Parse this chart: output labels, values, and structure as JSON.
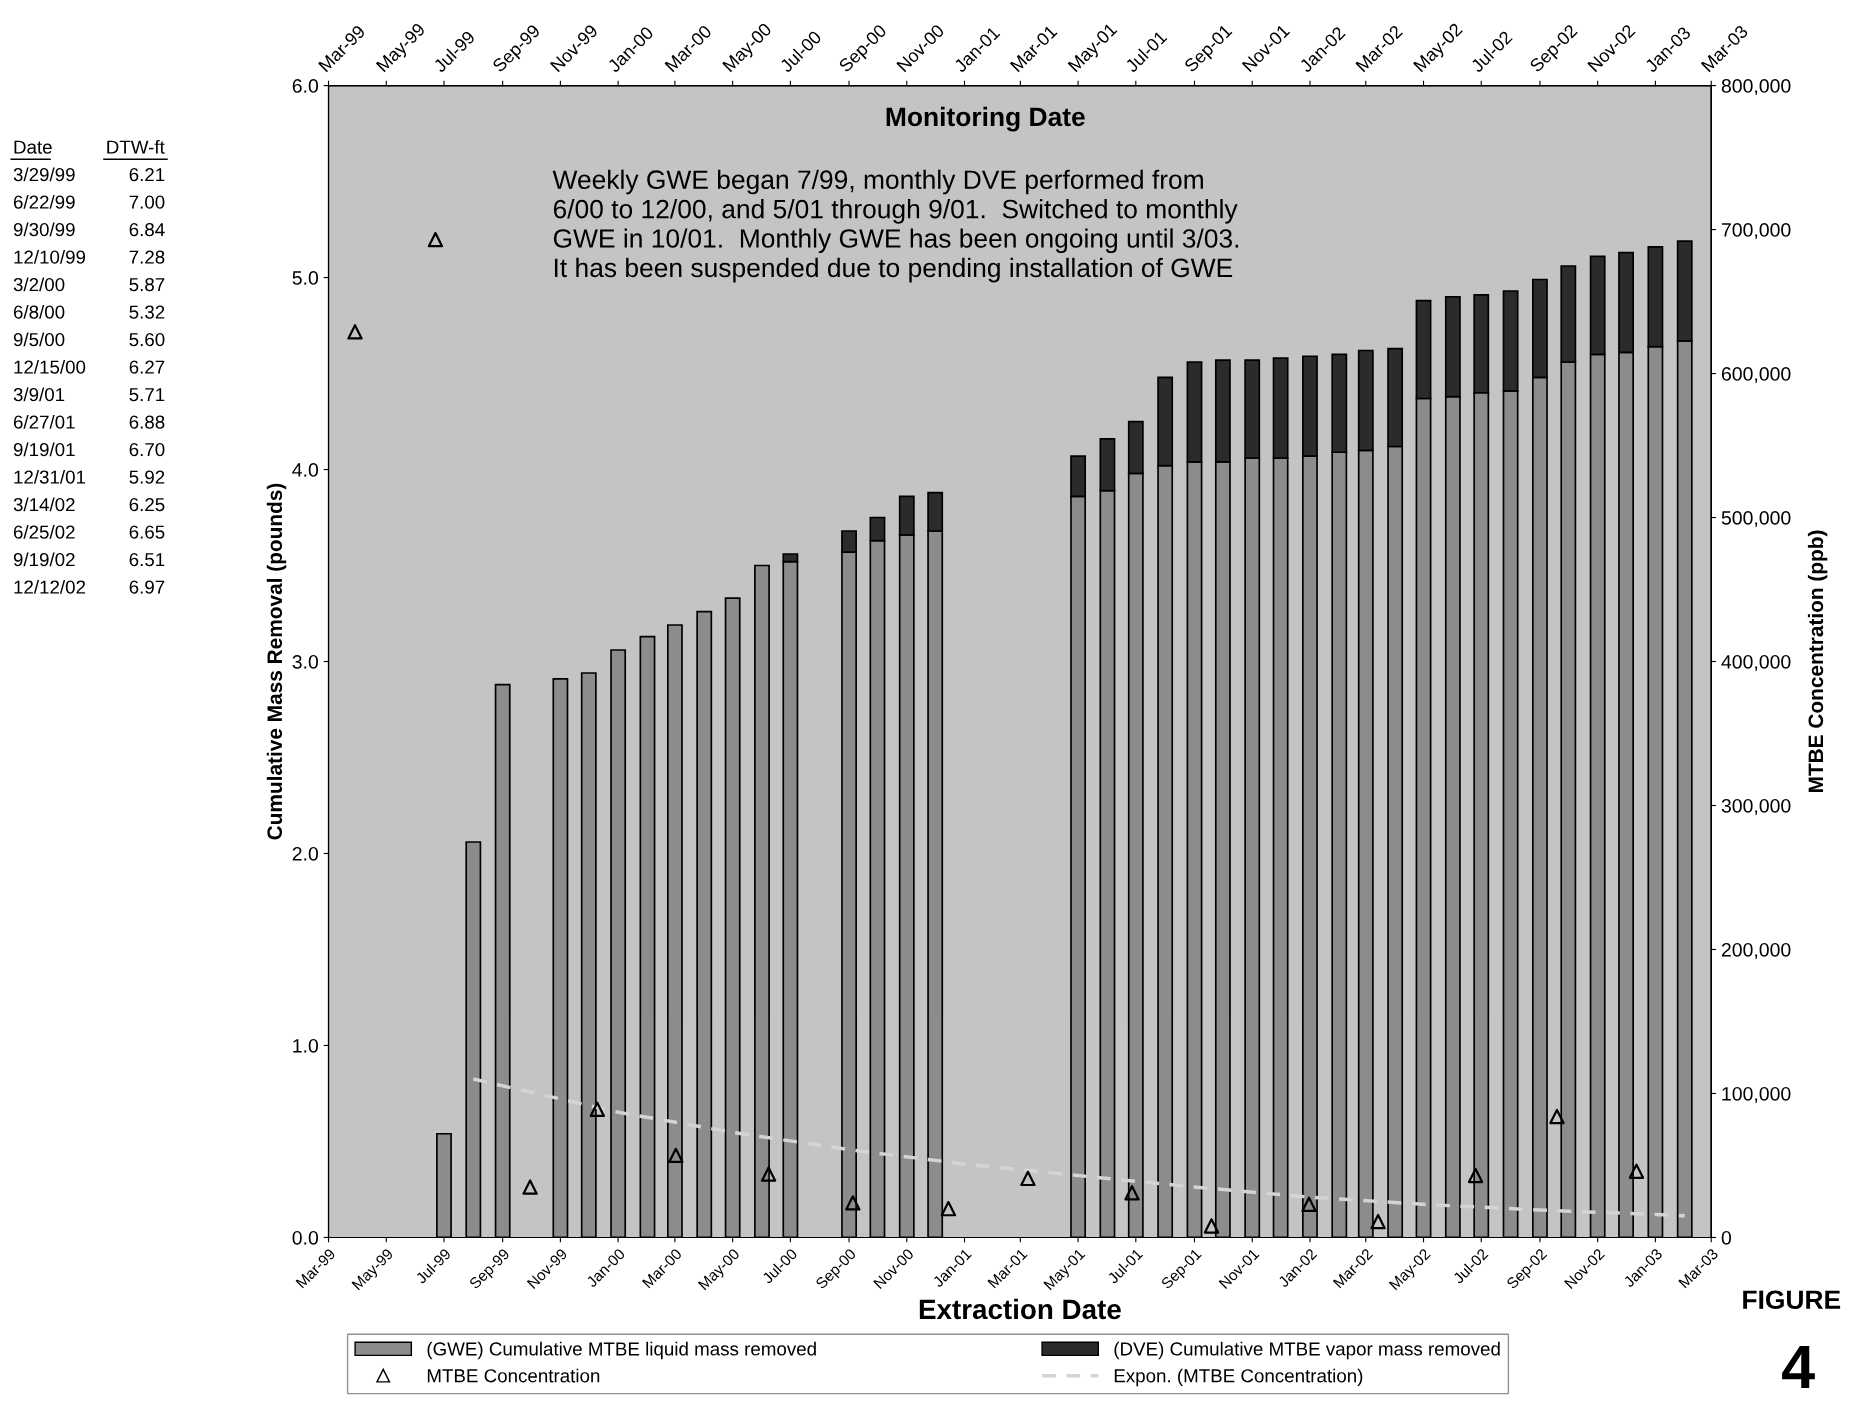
{
  "chart_data": {
    "type": "bar",
    "stacked": true,
    "xlabel": "Extraction Date",
    "ylabel": "Cumulative Mass Removal (pounds)",
    "y2label": "MTBE Concentration (ppb)",
    "x2label": "Monitoring Date",
    "x": [
      "1999-07",
      "1999-08",
      "1999-09",
      "1999-11",
      "1999-12",
      "2000-01",
      "2000-02",
      "2000-03",
      "2000-04",
      "2000-05",
      "2000-06",
      "2000-07",
      "2000-09",
      "2000-10",
      "2000-11",
      "2000-12",
      "2001-05",
      "2001-06",
      "2001-07",
      "2001-08",
      "2001-09",
      "2001-10",
      "2001-11",
      "2001-12",
      "2002-01",
      "2002-02",
      "2002-03",
      "2002-04",
      "2002-05",
      "2002-06",
      "2002-07",
      "2002-08",
      "2002-09",
      "2002-10",
      "2002-11",
      "2002-12",
      "2003-01",
      "2003-02"
    ],
    "series": [
      {
        "name": "(GWE) Cumulative MTBE liquid mass removed",
        "color": "#8c8c8c",
        "values": [
          0.54,
          2.06,
          2.88,
          2.91,
          2.94,
          3.06,
          3.13,
          3.19,
          3.26,
          3.33,
          3.5,
          3.52,
          3.57,
          3.63,
          3.66,
          3.68,
          3.86,
          3.89,
          3.98,
          4.02,
          4.04,
          4.04,
          4.06,
          4.06,
          4.07,
          4.09,
          4.1,
          4.12,
          4.37,
          4.38,
          4.4,
          4.41,
          4.48,
          4.56,
          4.6,
          4.61,
          4.64,
          4.67
        ]
      },
      {
        "name": "(DVE) Cumulative MTBE vapor mass removed",
        "color": "#2b2b2b",
        "values": [
          null,
          null,
          null,
          null,
          null,
          null,
          null,
          null,
          null,
          null,
          null,
          0.04,
          0.11,
          0.12,
          0.2,
          0.2,
          0.21,
          0.27,
          0.27,
          0.46,
          0.52,
          0.53,
          0.51,
          0.52,
          0.52,
          0.51,
          0.52,
          0.51,
          0.51,
          0.52,
          0.51,
          0.52,
          0.51,
          0.5,
          0.51,
          0.52,
          0.52,
          0.52
        ]
      },
      {
        "name": "MTBE Concentration",
        "type": "scatter",
        "axis": "y2",
        "marker": "triangle",
        "color": "#000000",
        "x": [
          "1999-03-29",
          "1999-06-22",
          "1999-09-30",
          "1999-12-10",
          "2000-03-02",
          "2000-06-08",
          "2000-09-05",
          "2000-12-15",
          "2001-03-09",
          "2001-06-27",
          "2001-09-19",
          "2001-12-31",
          "2002-03-14",
          "2002-06-25",
          "2002-09-19",
          "2002-12-12"
        ],
        "values": [
          629000,
          693000,
          35000,
          89000,
          57000,
          44000,
          24000,
          20000,
          41000,
          31000,
          8000,
          23000,
          11000,
          43000,
          84000,
          46000
        ]
      },
      {
        "name": "Expon. (MTBE Concentration)",
        "type": "line",
        "axis": "y2",
        "line_style": "dashed",
        "color": "#d4d4d4",
        "x": [
          "1999-08",
          "2000-01",
          "2000-05",
          "2000-09",
          "2001-01",
          "2001-05",
          "2001-09",
          "2002-01",
          "2002-05",
          "2002-09",
          "2003-01",
          "2003-02"
        ],
        "values": [
          110000,
          87000,
          73000,
          61000,
          51000,
          43000,
          35000,
          28000,
          23000,
          19000,
          16000,
          15000
        ]
      }
    ],
    "xlim": [
      "1999-03",
      "2003-03"
    ],
    "xticks": [
      {
        "value": "1999-03",
        "label": "Mar-99"
      },
      {
        "value": "1999-05",
        "label": "May-99"
      },
      {
        "value": "1999-07",
        "label": "Jul-99"
      },
      {
        "value": "1999-09",
        "label": "Sep-99"
      },
      {
        "value": "1999-11",
        "label": "Nov-99"
      },
      {
        "value": "2000-01",
        "label": "Jan-00"
      },
      {
        "value": "2000-03",
        "label": "Mar-00"
      },
      {
        "value": "2000-05",
        "label": "May-00"
      },
      {
        "value": "2000-07",
        "label": "Jul-00"
      },
      {
        "value": "2000-09",
        "label": "Sep-00"
      },
      {
        "value": "2000-11",
        "label": "Nov-00"
      },
      {
        "value": "2001-01",
        "label": "Jan-01"
      },
      {
        "value": "2001-03",
        "label": "Mar-01"
      },
      {
        "value": "2001-05",
        "label": "May-01"
      },
      {
        "value": "2001-07",
        "label": "Jul-01"
      },
      {
        "value": "2001-09",
        "label": "Sep-01"
      },
      {
        "value": "2001-11",
        "label": "Nov-01"
      },
      {
        "value": "2002-01",
        "label": "Jan-02"
      },
      {
        "value": "2002-03",
        "label": "Mar-02"
      },
      {
        "value": "2002-05",
        "label": "May-02"
      },
      {
        "value": "2002-07",
        "label": "Jul-02"
      },
      {
        "value": "2002-09",
        "label": "Sep-02"
      },
      {
        "value": "2002-11",
        "label": "Nov-02"
      },
      {
        "value": "2003-01",
        "label": "Jan-03"
      },
      {
        "value": "2003-03",
        "label": "Mar-03"
      }
    ],
    "x2lim": [
      "1999-03",
      "2003-03"
    ],
    "x2ticks": [
      {
        "value": "1999-03",
        "label": "Mar-99"
      },
      {
        "value": "1999-05",
        "label": "May-99"
      },
      {
        "value": "1999-07",
        "label": "Jul-99"
      },
      {
        "value": "1999-09",
        "label": "Sep-99"
      },
      {
        "value": "1999-11",
        "label": "Nov-99"
      },
      {
        "value": "2000-01",
        "label": "Jan-00"
      },
      {
        "value": "2000-03",
        "label": "Mar-00"
      },
      {
        "value": "2000-05",
        "label": "May-00"
      },
      {
        "value": "2000-07",
        "label": "Jul-00"
      },
      {
        "value": "2000-09",
        "label": "Sep-00"
      },
      {
        "value": "2000-11",
        "label": "Nov-00"
      },
      {
        "value": "2001-01",
        "label": "Jan-01"
      },
      {
        "value": "2001-03",
        "label": "Mar-01"
      },
      {
        "value": "2001-05",
        "label": "May-01"
      },
      {
        "value": "2001-07",
        "label": "Jul-01"
      },
      {
        "value": "2001-09",
        "label": "Sep-01"
      },
      {
        "value": "2001-11",
        "label": "Nov-01"
      },
      {
        "value": "2002-01",
        "label": "Jan-02"
      },
      {
        "value": "2002-03",
        "label": "Mar-02"
      },
      {
        "value": "2002-05",
        "label": "May-02"
      },
      {
        "value": "2002-07",
        "label": "Jul-02"
      },
      {
        "value": "2002-09",
        "label": "Sep-02"
      },
      {
        "value": "2002-11",
        "label": "Nov-02"
      },
      {
        "value": "2003-01",
        "label": "Jan-03"
      },
      {
        "value": "2003-03",
        "label": "Mar-03"
      }
    ],
    "ylim": [
      0,
      6
    ],
    "yticks": [
      {
        "value": 0,
        "label": "0.0"
      },
      {
        "value": 1,
        "label": "1.0"
      },
      {
        "value": 2,
        "label": "2.0"
      },
      {
        "value": 3,
        "label": "3.0"
      },
      {
        "value": 4,
        "label": "4.0"
      },
      {
        "value": 5,
        "label": "5.0"
      },
      {
        "value": 6,
        "label": "6.0"
      }
    ],
    "y2lim": [
      0,
      800000
    ],
    "y2ticks": [
      0,
      {
        "value": 100000,
        "label": "100,000"
      },
      {
        "value": 200000,
        "label": "200,000"
      },
      {
        "value": 300000,
        "label": "300,000"
      },
      {
        "value": 400000,
        "label": "400,000"
      },
      {
        "value": 500000,
        "label": "500,000"
      },
      {
        "value": 600000,
        "label": "600,000"
      },
      {
        "value": 700000,
        "label": "700,000"
      },
      {
        "value": 800000,
        "label": "800,000"
      }
    ],
    "legend": "bottom",
    "annotations": [
      "Weekly GWE began 7/99, monthly DVE performed from\n6/00 to 12/00, and 5/01 through 9/01.  Switched to monthly\nGWE in 10/01.  Monthly GWE has been ongoing until 3/03.\nIt has been suspended due to pending installation of GWE",
      "FIGURE",
      "4",
      "Date",
      "DTW-ft",
      "3/29/99",
      "6.21",
      "6/22/99",
      "7.00",
      "9/30/99",
      "6.84",
      "12/10/99",
      "7.28",
      "3/2/00",
      "5.87",
      "6/8/00",
      "5.32",
      "9/5/00",
      "5.60",
      "12/15/00",
      "6.27",
      "3/9/01",
      "5.71",
      "6/27/01",
      "6.88",
      "9/19/01",
      "6.70",
      "12/31/01",
      "5.92",
      "3/14/02",
      "6.25",
      "6/25/02",
      "6.65",
      "9/19/02",
      "6.51",
      "12/12/02",
      "6.97"
    ]
  }
}
